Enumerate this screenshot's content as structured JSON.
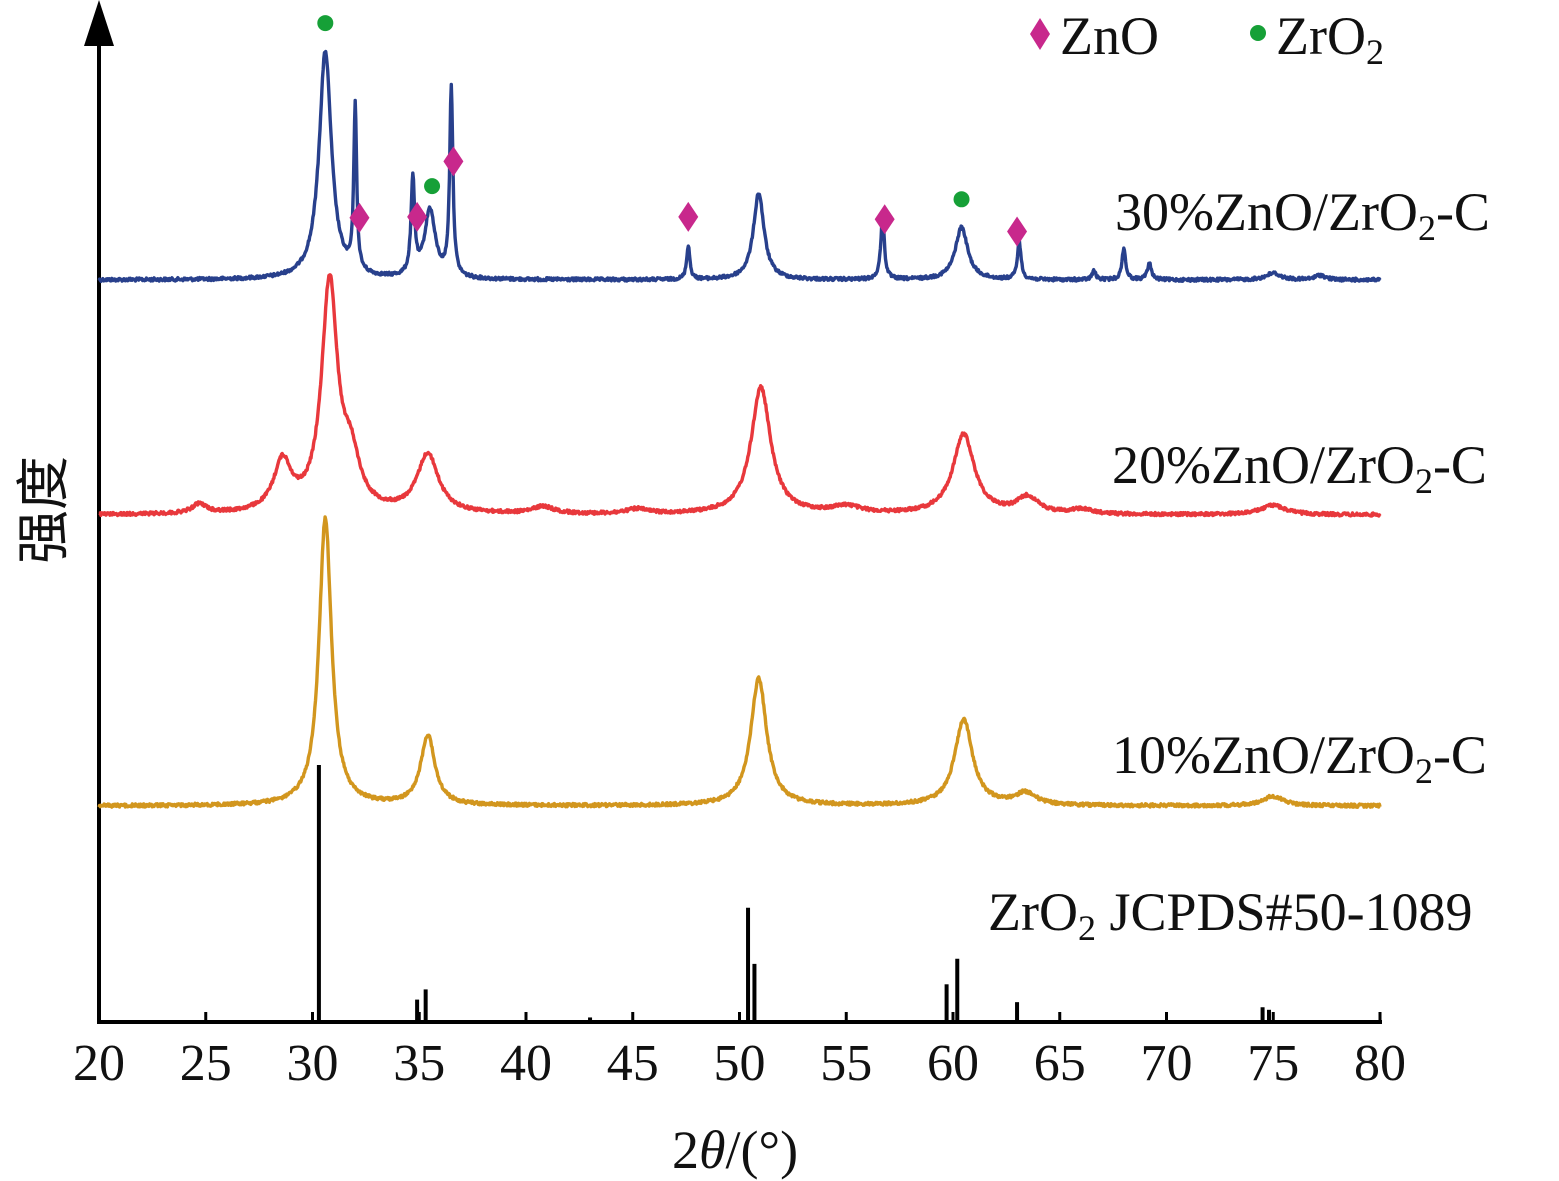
{
  "chart_data": {
    "type": "line",
    "title": "",
    "xlabel": "2θ/(°)",
    "ylabel": "强度",
    "xlim": [
      20,
      80
    ],
    "xticks": [
      "20",
      "25",
      "30",
      "35",
      "40",
      "45",
      "50",
      "55",
      "60",
      "65",
      "70",
      "75",
      "80"
    ],
    "grid": false,
    "legend": {
      "placement": "top-right",
      "entries": [
        {
          "name": "ZnO",
          "marker": "diamond",
          "color": "#c8288c"
        },
        {
          "name": "ZrO2",
          "marker": "circle",
          "color": "#16a037"
        }
      ]
    },
    "series": [
      {
        "name": "30%ZnO/ZrO2-C",
        "color": "#28408c",
        "baseline": 0.0,
        "peaks": [
          {
            "x": 30.6,
            "h": 1.0,
            "w": 0.35
          },
          {
            "x": 32.0,
            "h": 0.73,
            "w": 0.08
          },
          {
            "x": 34.7,
            "h": 0.42,
            "w": 0.1
          },
          {
            "x": 35.5,
            "h": 0.3,
            "w": 0.3
          },
          {
            "x": 36.5,
            "h": 0.83,
            "w": 0.09
          },
          {
            "x": 47.6,
            "h": 0.15,
            "w": 0.09
          },
          {
            "x": 50.9,
            "h": 0.38,
            "w": 0.3
          },
          {
            "x": 56.7,
            "h": 0.28,
            "w": 0.1
          },
          {
            "x": 60.4,
            "h": 0.23,
            "w": 0.35
          },
          {
            "x": 63.1,
            "h": 0.17,
            "w": 0.1
          },
          {
            "x": 66.6,
            "h": 0.04,
            "w": 0.1
          },
          {
            "x": 68.0,
            "h": 0.14,
            "w": 0.1
          },
          {
            "x": 69.2,
            "h": 0.07,
            "w": 0.12
          },
          {
            "x": 75.0,
            "h": 0.03,
            "w": 0.4
          },
          {
            "x": 77.2,
            "h": 0.02,
            "w": 0.3
          }
        ]
      },
      {
        "name": "20%ZnO/ZrO2-C",
        "color": "#e8383c",
        "baseline": 0.0,
        "peaks": [
          {
            "x": 24.7,
            "h": 0.04,
            "w": 0.4
          },
          {
            "x": 28.6,
            "h": 0.21,
            "w": 0.5
          },
          {
            "x": 30.8,
            "h": 0.97,
            "w": 0.45
          },
          {
            "x": 31.8,
            "h": 0.2,
            "w": 0.5
          },
          {
            "x": 35.4,
            "h": 0.25,
            "w": 0.6
          },
          {
            "x": 40.8,
            "h": 0.03,
            "w": 0.6
          },
          {
            "x": 45.2,
            "h": 0.02,
            "w": 0.6
          },
          {
            "x": 51.0,
            "h": 0.54,
            "w": 0.55
          },
          {
            "x": 55.0,
            "h": 0.03,
            "w": 0.8
          },
          {
            "x": 60.5,
            "h": 0.34,
            "w": 0.6
          },
          {
            "x": 63.5,
            "h": 0.07,
            "w": 0.6
          },
          {
            "x": 66.0,
            "h": 0.02,
            "w": 0.6
          },
          {
            "x": 75.0,
            "h": 0.04,
            "w": 0.7
          }
        ]
      },
      {
        "name": "10%ZnO/ZrO2-C",
        "color": "#d2961e",
        "baseline": 0.0,
        "peaks": [
          {
            "x": 30.6,
            "h": 1.2,
            "w": 0.35
          },
          {
            "x": 35.4,
            "h": 0.29,
            "w": 0.4
          },
          {
            "x": 50.9,
            "h": 0.53,
            "w": 0.45
          },
          {
            "x": 60.5,
            "h": 0.36,
            "w": 0.5
          },
          {
            "x": 63.4,
            "h": 0.05,
            "w": 0.6
          },
          {
            "x": 75.0,
            "h": 0.04,
            "w": 0.6
          }
        ]
      }
    ],
    "reference": {
      "name": "ZrO2 JCPDS#50-1089",
      "color": "#000000",
      "lines": [
        {
          "x": 30.3,
          "h": 1.0
        },
        {
          "x": 34.9,
          "h": 0.08
        },
        {
          "x": 35.3,
          "h": 0.12
        },
        {
          "x": 43.0,
          "h": 0.01
        },
        {
          "x": 50.4,
          "h": 0.44
        },
        {
          "x": 50.7,
          "h": 0.22
        },
        {
          "x": 59.7,
          "h": 0.14
        },
        {
          "x": 60.2,
          "h": 0.24
        },
        {
          "x": 63.0,
          "h": 0.07
        },
        {
          "x": 74.5,
          "h": 0.05
        },
        {
          "x": 74.8,
          "h": 0.04
        }
      ]
    },
    "peak_markers": [
      {
        "x": 30.6,
        "series": "30%ZnO/ZrO2-C",
        "type": "ZrO2"
      },
      {
        "x": 32.2,
        "series": "30%ZnO/ZrO2-C",
        "type": "ZnO"
      },
      {
        "x": 34.9,
        "series": "30%ZnO/ZrO2-C",
        "type": "ZnO"
      },
      {
        "x": 35.6,
        "series": "30%ZnO/ZrO2-C",
        "type": "ZrO2"
      },
      {
        "x": 36.6,
        "series": "30%ZnO/ZrO2-C",
        "type": "ZnO"
      },
      {
        "x": 47.6,
        "series": "30%ZnO/ZrO2-C",
        "type": "ZnO"
      },
      {
        "x": 56.8,
        "series": "30%ZnO/ZrO2-C",
        "type": "ZnO"
      },
      {
        "x": 60.4,
        "series": "30%ZnO/ZrO2-C",
        "type": "ZrO2"
      },
      {
        "x": 63.0,
        "series": "30%ZnO/ZrO2-C",
        "type": "ZnO"
      }
    ]
  },
  "labels": {
    "legend_zno": "ZnO",
    "legend_zro2_main": "ZrO",
    "legend_zro2_sub": "2",
    "series_30_a": "30%ZnO/ZrO",
    "series_30_sub": "2",
    "series_30_b": "-C",
    "series_20_a": "20%ZnO/ZrO",
    "series_20_sub": "2",
    "series_20_b": "-C",
    "series_10_a": "10%ZnO/ZrO",
    "series_10_sub": "2",
    "series_10_b": "-C",
    "ref_a": "ZrO",
    "ref_sub": "2",
    "ref_b": " JCPDS#50-1089",
    "xlabel_a": "2",
    "xlabel_theta": "θ",
    "xlabel_b": "/(°)",
    "ylabel": "强度"
  }
}
